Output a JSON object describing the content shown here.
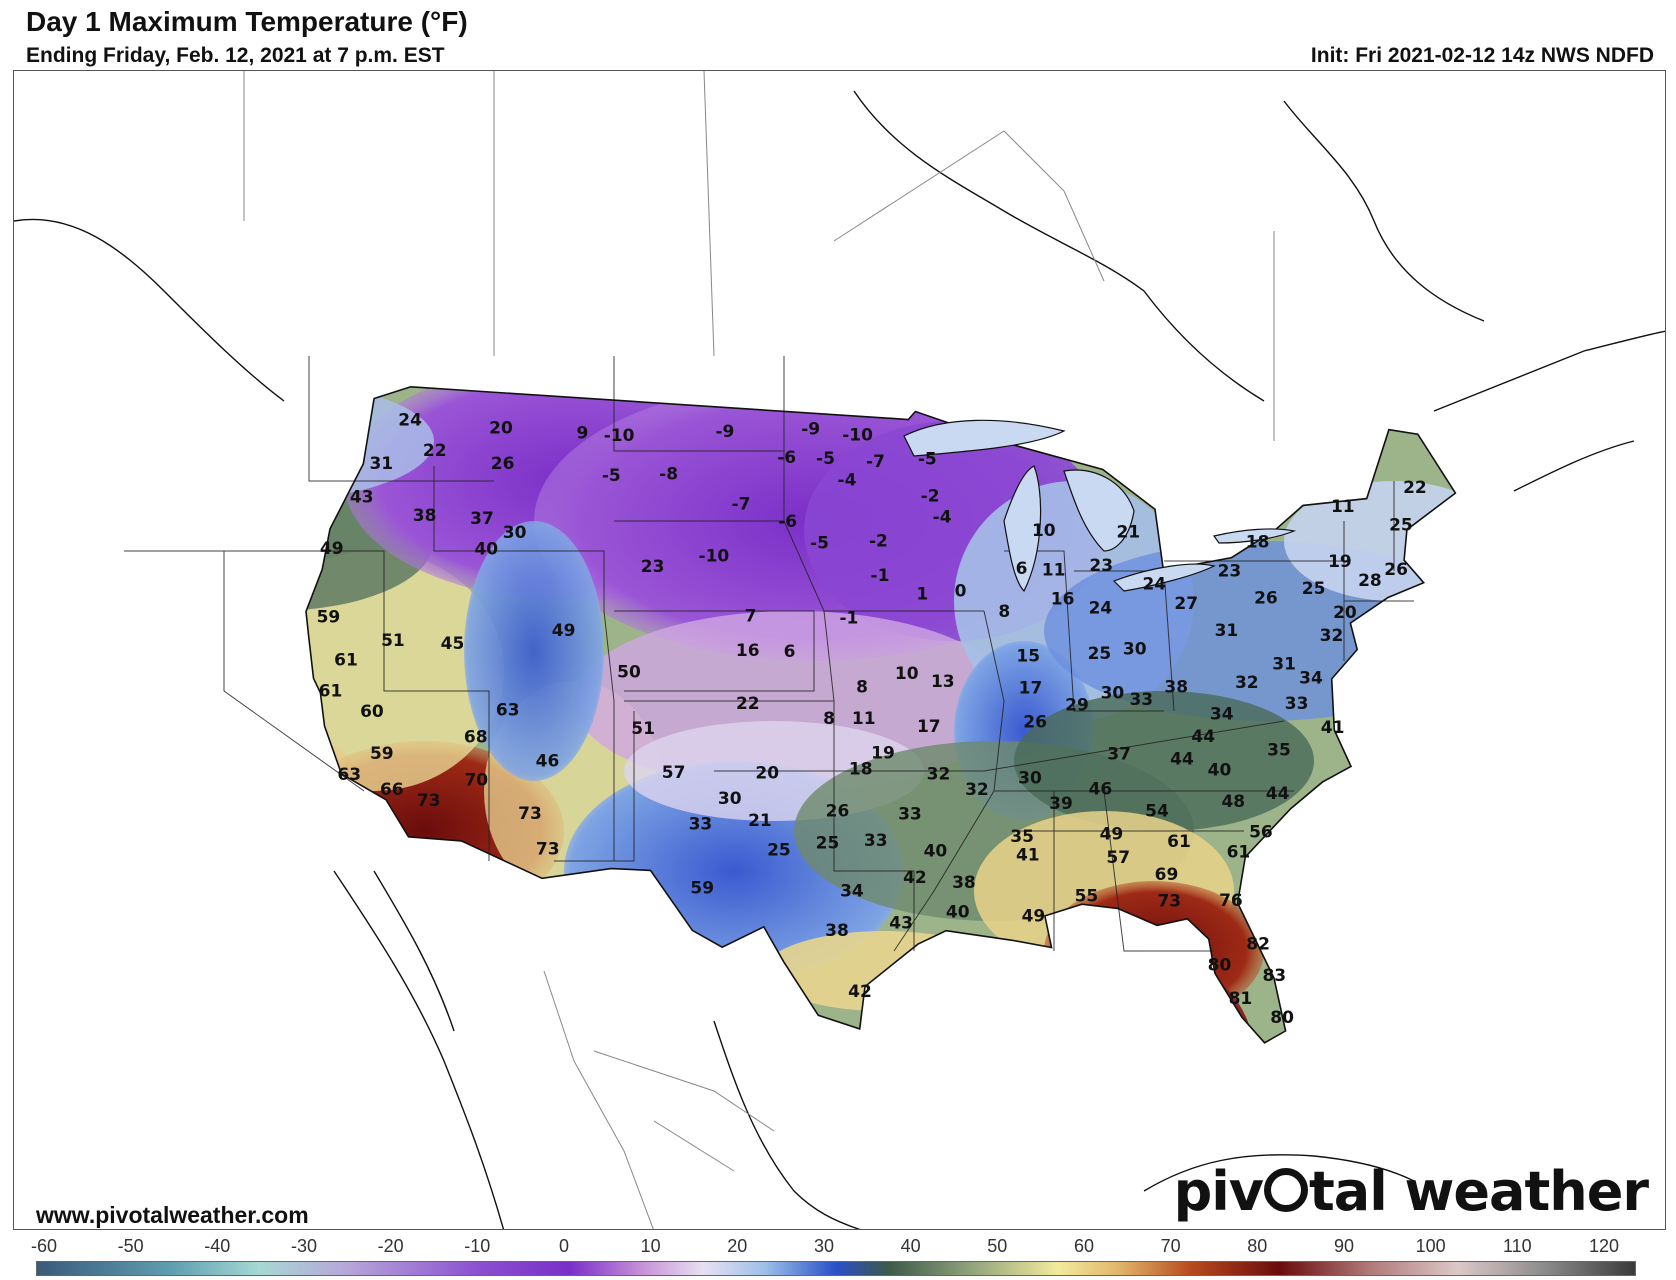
{
  "header": {
    "title": "Day 1 Maximum Temperature (°F)",
    "subtitle": "Ending Friday, Feb. 12, 2021 at 7 p.m. EST",
    "init": "Init: Fri 2021-02-12 14z NWS NDFD"
  },
  "footer": {
    "url": "www.pivotalweather.com",
    "brand_before": "piv",
    "brand_after": "tal weather"
  },
  "scale": {
    "ticks": [
      "-60",
      "-50",
      "-40",
      "-30",
      "-20",
      "-10",
      "0",
      "10",
      "20",
      "30",
      "40",
      "50",
      "60",
      "70",
      "80",
      "90",
      "100",
      "110",
      "120"
    ],
    "min": -60,
    "max": 120,
    "stops": [
      {
        "t": -60,
        "color": "#3a5a7a"
      },
      {
        "t": -45,
        "color": "#5f9db0"
      },
      {
        "t": -35,
        "color": "#a6d8d4"
      },
      {
        "t": -25,
        "color": "#b6a6d8"
      },
      {
        "t": -10,
        "color": "#8a4fd0"
      },
      {
        "t": 0,
        "color": "#7a2fc8"
      },
      {
        "t": 8,
        "color": "#c78fd8"
      },
      {
        "t": 15,
        "color": "#e8e0f2"
      },
      {
        "t": 22,
        "color": "#9cc0e8"
      },
      {
        "t": 30,
        "color": "#2a4fc8"
      },
      {
        "t": 36,
        "color": "#3d5a4a"
      },
      {
        "t": 45,
        "color": "#8ea27a"
      },
      {
        "t": 55,
        "color": "#f2ea9c"
      },
      {
        "t": 62,
        "color": "#e0b46a"
      },
      {
        "t": 70,
        "color": "#b84a1e"
      },
      {
        "t": 80,
        "color": "#6a0c0c"
      },
      {
        "t": 90,
        "color": "#b07878"
      },
      {
        "t": 100,
        "color": "#dcc8c8"
      },
      {
        "t": 110,
        "color": "#8a8a8a"
      },
      {
        "t": 120,
        "color": "#3a3a3a"
      }
    ]
  },
  "legend_colors": {
    "outline": "#111111",
    "frame": "#555555"
  },
  "station_values": [
    {
      "label": "24",
      "lon": -122.3,
      "lat": 47.6
    },
    {
      "label": "20",
      "lon": -117.4,
      "lat": 47.7
    },
    {
      "label": "22",
      "lon": -120.5,
      "lat": 46.6
    },
    {
      "label": "26",
      "lon": -116.8,
      "lat": 46.4
    },
    {
      "label": "31",
      "lon": -123.0,
      "lat": 45.9
    },
    {
      "label": "43",
      "lon": -123.4,
      "lat": 44.6
    },
    {
      "label": "38",
      "lon": -120.0,
      "lat": 44.2
    },
    {
      "label": "37",
      "lon": -117.1,
      "lat": 44.3
    },
    {
      "label": "30",
      "lon": -115.3,
      "lat": 43.9
    },
    {
      "label": "40",
      "lon": -116.5,
      "lat": 43.2
    },
    {
      "label": "49",
      "lon": -124.0,
      "lat": 42.6
    },
    {
      "label": "59",
      "lon": -123.1,
      "lat": 40.1
    },
    {
      "label": "51",
      "lon": -119.8,
      "lat": 39.5
    },
    {
      "label": "45",
      "lon": -117.0,
      "lat": 39.6
    },
    {
      "label": "61",
      "lon": -121.7,
      "lat": 38.6
    },
    {
      "label": "61",
      "lon": -122.0,
      "lat": 37.4
    },
    {
      "label": "60",
      "lon": -119.9,
      "lat": 36.8
    },
    {
      "label": "59",
      "lon": -119.0,
      "lat": 35.3
    },
    {
      "label": "63",
      "lon": -120.2,
      "lat": 34.4
    },
    {
      "label": "66",
      "lon": -118.2,
      "lat": 34.0
    },
    {
      "label": "73",
      "lon": -116.5,
      "lat": 33.7
    },
    {
      "label": "68",
      "lon": -115.0,
      "lat": 36.2
    },
    {
      "label": "63",
      "lon": -113.8,
      "lat": 37.3
    },
    {
      "label": "70",
      "lon": -114.6,
      "lat": 34.6
    },
    {
      "label": "73",
      "lon": -112.0,
      "lat": 33.5
    },
    {
      "label": "73",
      "lon": -111.0,
      "lat": 32.2
    },
    {
      "label": "46",
      "lon": -111.6,
      "lat": 35.5
    },
    {
      "label": "49",
      "lon": -111.9,
      "lat": 40.4
    },
    {
      "label": "-10",
      "lon": -111.0,
      "lat": 47.8
    },
    {
      "label": "9",
      "lon": -113.0,
      "lat": 47.8
    },
    {
      "label": "-5",
      "lon": -111.0,
      "lat": 46.3
    },
    {
      "label": "-8",
      "lon": -108.0,
      "lat": 46.5
    },
    {
      "label": "-9",
      "lon": -105.3,
      "lat": 48.2
    },
    {
      "label": "-7",
      "lon": -104.0,
      "lat": 45.5
    },
    {
      "label": "-10",
      "lon": -105.1,
      "lat": 43.5
    },
    {
      "label": "23",
      "lon": -108.1,
      "lat": 43.0
    },
    {
      "label": "50",
      "lon": -108.5,
      "lat": 39.0
    },
    {
      "label": "16",
      "lon": -103.0,
      "lat": 40.0
    },
    {
      "label": "22",
      "lon": -102.8,
      "lat": 38.0
    },
    {
      "label": "7",
      "lon": -103.0,
      "lat": 41.3
    },
    {
      "label": "6",
      "lon": -101.0,
      "lat": 40.0
    },
    {
      "label": "51",
      "lon": -107.5,
      "lat": 36.9
    },
    {
      "label": "57",
      "lon": -105.9,
      "lat": 35.3
    },
    {
      "label": "33",
      "lon": -104.5,
      "lat": 33.4
    },
    {
      "label": "59",
      "lon": -104.2,
      "lat": 31.0
    },
    {
      "label": "-9",
      "lon": -100.6,
      "lat": 48.4
    },
    {
      "label": "-10",
      "lon": -98.0,
      "lat": 48.2
    },
    {
      "label": "-6",
      "lon": -101.8,
      "lat": 47.3
    },
    {
      "label": "-5",
      "lon": -99.7,
      "lat": 47.3
    },
    {
      "label": "-7",
      "lon": -97.0,
      "lat": 47.2
    },
    {
      "label": "-4",
      "lon": -98.5,
      "lat": 46.5
    },
    {
      "label": "-6",
      "lon": -101.5,
      "lat": 44.9
    },
    {
      "label": "-5",
      "lon": -99.8,
      "lat": 44.1
    },
    {
      "label": "-2",
      "lon": -96.8,
      "lat": 44.2
    },
    {
      "label": "-1",
      "lon": -96.7,
      "lat": 42.9
    },
    {
      "label": "-1",
      "lon": -98.2,
      "lat": 41.3
    },
    {
      "label": "-5",
      "lon": -94.2,
      "lat": 47.3
    },
    {
      "label": "-2",
      "lon": -94.1,
      "lat": 45.9
    },
    {
      "label": "-4",
      "lon": -93.5,
      "lat": 45.1
    },
    {
      "label": "1",
      "lon": -94.6,
      "lat": 42.2
    },
    {
      "label": "0",
      "lon": -92.7,
      "lat": 42.3
    },
    {
      "label": "8",
      "lon": -97.5,
      "lat": 38.7
    },
    {
      "label": "8",
      "lon": -99.0,
      "lat": 37.5
    },
    {
      "label": "11",
      "lon": -97.4,
      "lat": 37.5
    },
    {
      "label": "10",
      "lon": -95.4,
      "lat": 39.2
    },
    {
      "label": "13",
      "lon": -93.7,
      "lat": 38.9
    },
    {
      "label": "17",
      "lon": -94.4,
      "lat": 37.2
    },
    {
      "label": "19",
      "lon": -96.5,
      "lat": 36.2
    },
    {
      "label": "18",
      "lon": -97.5,
      "lat": 35.6
    },
    {
      "label": "20",
      "lon": -101.7,
      "lat": 35.4
    },
    {
      "label": "21",
      "lon": -101.9,
      "lat": 33.6
    },
    {
      "label": "30",
      "lon": -103.3,
      "lat": 34.4
    },
    {
      "label": "26",
      "lon": -98.5,
      "lat": 34.0
    },
    {
      "label": "33",
      "lon": -95.3,
      "lat": 33.9
    },
    {
      "label": "25",
      "lon": -101.0,
      "lat": 32.5
    },
    {
      "label": "25",
      "lon": -98.9,
      "lat": 32.8
    },
    {
      "label": "33",
      "lon": -96.8,
      "lat": 32.9
    },
    {
      "label": "34",
      "lon": -97.8,
      "lat": 31.0
    },
    {
      "label": "38",
      "lon": -98.4,
      "lat": 29.5
    },
    {
      "label": "42",
      "lon": -95.1,
      "lat": 31.5
    },
    {
      "label": "43",
      "lon": -95.7,
      "lat": 29.8
    },
    {
      "label": "42",
      "lon": -97.4,
      "lat": 27.2
    },
    {
      "label": "40",
      "lon": -94.2,
      "lat": 32.5
    },
    {
      "label": "38",
      "lon": -93.0,
      "lat": 31.3
    },
    {
      "label": "40",
      "lon": -93.3,
      "lat": 30.2
    },
    {
      "label": "32",
      "lon": -94.0,
      "lat": 35.4
    },
    {
      "label": "32",
      "lon": -92.3,
      "lat": 34.8
    },
    {
      "label": "35",
      "lon": -90.4,
      "lat": 33.0
    },
    {
      "label": "41",
      "lon": -90.2,
      "lat": 32.3
    },
    {
      "label": "49",
      "lon": -90.1,
      "lat": 30.0
    },
    {
      "label": "55",
      "lon": -87.8,
      "lat": 30.7
    },
    {
      "label": "30",
      "lon": -89.9,
      "lat": 35.2
    },
    {
      "label": "39",
      "lon": -88.6,
      "lat": 34.2
    },
    {
      "label": "46",
      "lon": -86.8,
      "lat": 34.7
    },
    {
      "label": "49",
      "lon": -86.5,
      "lat": 33.0
    },
    {
      "label": "57",
      "lon": -86.3,
      "lat": 32.1
    },
    {
      "label": "54",
      "lon": -84.4,
      "lat": 33.8
    },
    {
      "label": "61",
      "lon": -83.6,
      "lat": 32.6
    },
    {
      "label": "69",
      "lon": -84.3,
      "lat": 31.4
    },
    {
      "label": "73",
      "lon": -84.3,
      "lat": 30.4
    },
    {
      "label": "76",
      "lon": -81.7,
      "lat": 30.3
    },
    {
      "label": "61",
      "lon": -81.1,
      "lat": 32.1
    },
    {
      "label": "56",
      "lon": -80.0,
      "lat": 32.8
    },
    {
      "label": "48",
      "lon": -81.0,
      "lat": 34.0
    },
    {
      "label": "40",
      "lon": -81.4,
      "lat": 35.2
    },
    {
      "label": "44",
      "lon": -79.0,
      "lat": 34.2
    },
    {
      "label": "35",
      "lon": -78.6,
      "lat": 35.8
    },
    {
      "label": "44",
      "lon": -83.0,
      "lat": 35.7
    },
    {
      "label": "44",
      "lon": -81.9,
      "lat": 36.5
    },
    {
      "label": "37",
      "lon": -85.8,
      "lat": 36.0
    },
    {
      "label": "82",
      "lon": -80.8,
      "lat": 28.6
    },
    {
      "label": "80",
      "lon": -82.5,
      "lat": 27.9
    },
    {
      "label": "83",
      "lon": -80.3,
      "lat": 27.4
    },
    {
      "label": "81",
      "lon": -81.8,
      "lat": 26.6
    },
    {
      "label": "80",
      "lon": -80.2,
      "lat": 25.8
    },
    {
      "label": "15",
      "lon": -89.6,
      "lat": 39.8
    },
    {
      "label": "8",
      "lon": -90.6,
      "lat": 41.5
    },
    {
      "label": "6",
      "lon": -89.6,
      "lat": 43.1
    },
    {
      "label": "17",
      "lon": -89.6,
      "lat": 38.6
    },
    {
      "label": "26",
      "lon": -89.5,
      "lat": 37.3
    },
    {
      "label": "29",
      "lon": -87.5,
      "lat": 37.9
    },
    {
      "label": "25",
      "lon": -86.2,
      "lat": 39.8
    },
    {
      "label": "24",
      "lon": -85.9,
      "lat": 41.5
    },
    {
      "label": "16",
      "lon": -87.7,
      "lat": 41.9
    },
    {
      "label": "11",
      "lon": -88.0,
      "lat": 43.0
    },
    {
      "label": "10",
      "lon": -88.3,
      "lat": 44.5
    },
    {
      "label": "23",
      "lon": -85.6,
      "lat": 43.1
    },
    {
      "label": "21",
      "lon": -84.0,
      "lat": 44.3
    },
    {
      "label": "24",
      "lon": -83.1,
      "lat": 42.3
    },
    {
      "label": "27",
      "lon": -81.7,
      "lat": 41.5
    },
    {
      "label": "30",
      "lon": -84.5,
      "lat": 39.9
    },
    {
      "label": "30",
      "lon": -85.8,
      "lat": 38.3
    },
    {
      "label": "33",
      "lon": -84.5,
      "lat": 38.0
    },
    {
      "label": "38",
      "lon": -82.8,
      "lat": 38.4
    },
    {
      "label": "31",
      "lon": -80.0,
      "lat": 40.4
    },
    {
      "label": "34",
      "lon": -80.9,
      "lat": 37.3
    },
    {
      "label": "32",
      "lon": -79.5,
      "lat": 38.4
    },
    {
      "label": "33",
      "lon": -77.4,
      "lat": 37.5
    },
    {
      "label": "31",
      "lon": -77.6,
      "lat": 39.0
    },
    {
      "label": "34",
      "lon": -76.5,
      "lat": 38.4
    },
    {
      "label": "41",
      "lon": -76.0,
      "lat": 36.5
    },
    {
      "label": "32",
      "lon": -75.1,
      "lat": 39.9
    },
    {
      "label": "26",
      "lon": -77.8,
      "lat": 41.5
    },
    {
      "label": "23",
      "lon": -79.3,
      "lat": 42.6
    },
    {
      "label": "18",
      "lon": -77.6,
      "lat": 43.6
    },
    {
      "label": "25",
      "lon": -75.4,
      "lat": 41.7
    },
    {
      "label": "20",
      "lon": -74.2,
      "lat": 40.7
    },
    {
      "label": "19",
      "lon": -73.8,
      "lat": 42.6
    },
    {
      "label": "28",
      "lon": -72.6,
      "lat": 41.8
    },
    {
      "label": "26",
      "lon": -71.2,
      "lat": 42.1
    },
    {
      "label": "25",
      "lon": -70.3,
      "lat": 43.7
    },
    {
      "label": "22",
      "lon": -69.0,
      "lat": 45.0
    },
    {
      "label": "11",
      "lon": -72.9,
      "lat": 44.6
    }
  ]
}
